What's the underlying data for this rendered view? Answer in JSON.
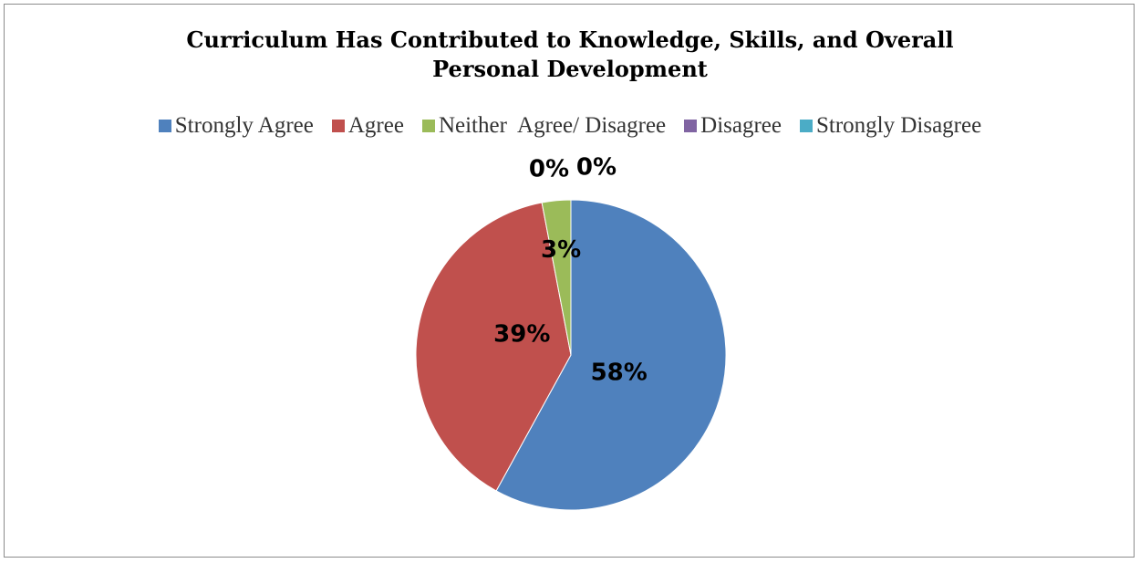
{
  "chart_data": {
    "type": "pie",
    "title_lines": [
      "Curriculum Has Contributed to Knowledge, Skills, and Overall",
      "Personal Development"
    ],
    "categories": [
      "Strongly Agree",
      "Agree",
      "Neither  Agree/ Disagree",
      "Disagree",
      "Strongly Disagree"
    ],
    "values": [
      58,
      39,
      3,
      0,
      0
    ],
    "labels": [
      "58%",
      "39%",
      "3%",
      "0%",
      "0%"
    ],
    "colors": [
      "#4f81bd",
      "#c0504d",
      "#9bbb59",
      "#8064a2",
      "#4bacc6"
    ],
    "legend_position": "top"
  }
}
